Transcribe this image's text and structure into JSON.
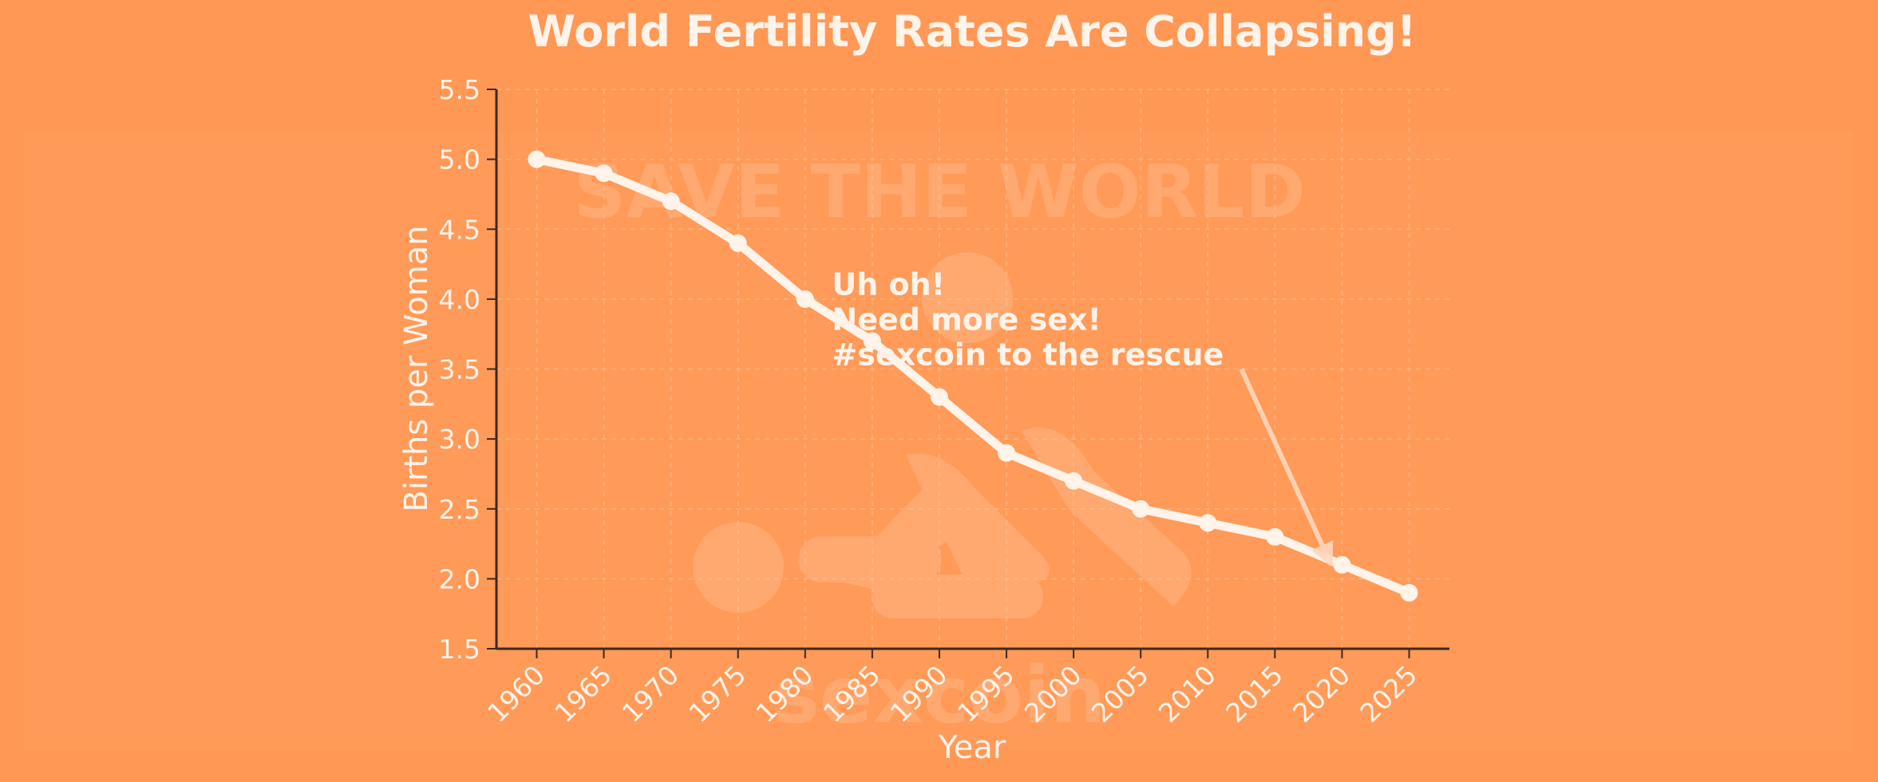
{
  "chart_data": {
    "type": "line",
    "title": "World Fertility Rates Are Collapsing!",
    "xlabel": "Year",
    "ylabel": "Births per Woman",
    "x": [
      1960,
      1965,
      1970,
      1975,
      1980,
      1985,
      1990,
      1995,
      2000,
      2005,
      2010,
      2015,
      2020,
      2025
    ],
    "series": [
      {
        "values": [
          5.0,
          4.9,
          4.7,
          4.4,
          4.0,
          3.7,
          3.3,
          2.9,
          2.7,
          2.5,
          2.4,
          2.3,
          2.1,
          1.9
        ]
      }
    ],
    "xticks": [
      "1960",
      "1965",
      "1970",
      "1975",
      "1980",
      "1985",
      "1990",
      "1995",
      "2000",
      "2005",
      "2010",
      "2015",
      "2020",
      "2025"
    ],
    "yticks": [
      "1.5",
      "2.0",
      "2.5",
      "3.0",
      "3.5",
      "4.0",
      "4.5",
      "5.0",
      "5.5"
    ],
    "xlim": [
      1957,
      2028
    ],
    "ylim": [
      1.5,
      5.5
    ],
    "grid": true,
    "annotation": {
      "lines": [
        "Uh oh!",
        "Need more sex!",
        "#sexcoin to the rescue"
      ],
      "text_anchor": {
        "x": 1982,
        "y": 4.03
      },
      "arrow_from": {
        "x": 2012.5,
        "y": 3.5
      },
      "arrow_to": {
        "x": 2019.2,
        "y": 2.1
      }
    },
    "colors": {
      "background": "#ff9854",
      "line": "#fff3ea",
      "text": "#fff3ea",
      "axis": "#3a2a20"
    }
  },
  "watermark": {
    "top_text": "SAVE THE WORLD",
    "bottom_text": "sexcoin"
  }
}
